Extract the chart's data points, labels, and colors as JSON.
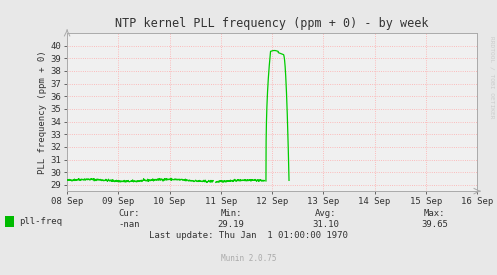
{
  "title": "NTP kernel PLL frequency (ppm + 0) - by week",
  "ylabel": "PLL frequency (ppm + 0)",
  "bg_color": "#e8e8e8",
  "plot_bg_color": "#f0f0f0",
  "grid_color": "#ffaaaa",
  "line_color": "#00cc00",
  "axis_color": "#aaaaaa",
  "text_color": "#333333",
  "legend_label": "pll-freq",
  "legend_color": "#00bb00",
  "cur_label": "Cur:",
  "cur_val": "-nan",
  "min_label": "Min:",
  "min_val": "29.19",
  "avg_label": "Avg:",
  "avg_val": "31.10",
  "max_label": "Max:",
  "max_val": "39.65",
  "last_update": "Last update: Thu Jan  1 01:00:00 1970",
  "munin_text": "Munin 2.0.75",
  "rrdtool_text": "RRDTOOL / TOBI OETIKER",
  "ylim": [
    28.5,
    41.0
  ],
  "yticks": [
    29,
    30,
    31,
    32,
    33,
    34,
    35,
    36,
    37,
    38,
    39,
    40
  ],
  "x_start": 0,
  "x_end": 8,
  "xtick_labels": [
    "08 Sep",
    "09 Sep",
    "10 Sep",
    "11 Sep",
    "12 Sep",
    "13 Sep",
    "14 Sep",
    "15 Sep",
    "16 Sep"
  ],
  "xtick_positions": [
    0,
    1,
    2,
    3,
    4,
    5,
    6,
    7,
    8
  ]
}
